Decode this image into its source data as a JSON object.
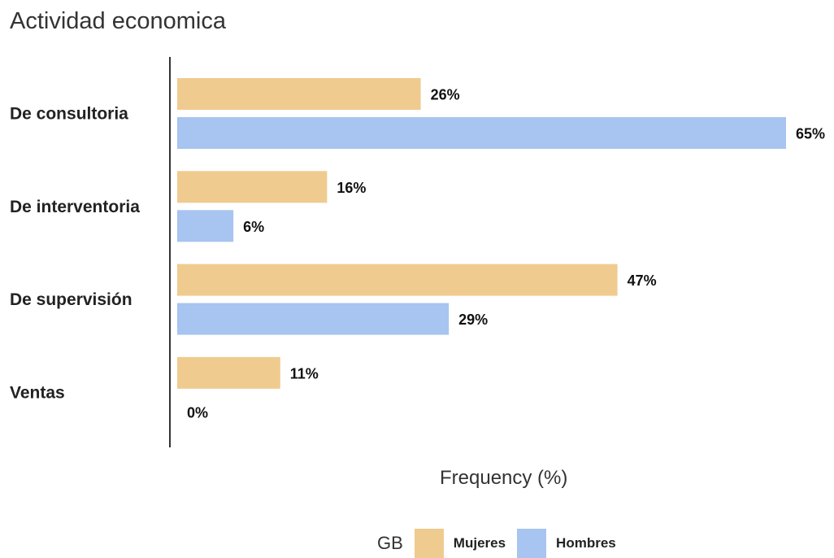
{
  "chart_data": {
    "type": "bar",
    "orientation": "horizontal",
    "title": "Actividad economica",
    "xlabel": "Frequency (%)",
    "ylabel": "",
    "categories": [
      "De consultoria",
      "De interventoria",
      "De supervisión",
      "Ventas"
    ],
    "series": [
      {
        "name": "Mujeres",
        "color": "#f0cb8f",
        "values": [
          26,
          16,
          47,
          11
        ],
        "labels": [
          "26%",
          "16%",
          "47%",
          "11%"
        ]
      },
      {
        "name": "Hombres",
        "color": "#a8c4f0",
        "values": [
          65,
          6,
          29,
          0
        ],
        "labels": [
          "65%",
          "6%",
          "29%",
          "0%"
        ]
      }
    ],
    "xlim": [
      0,
      65
    ],
    "grid": false,
    "legend": {
      "title": "GB",
      "position": "bottom"
    }
  }
}
